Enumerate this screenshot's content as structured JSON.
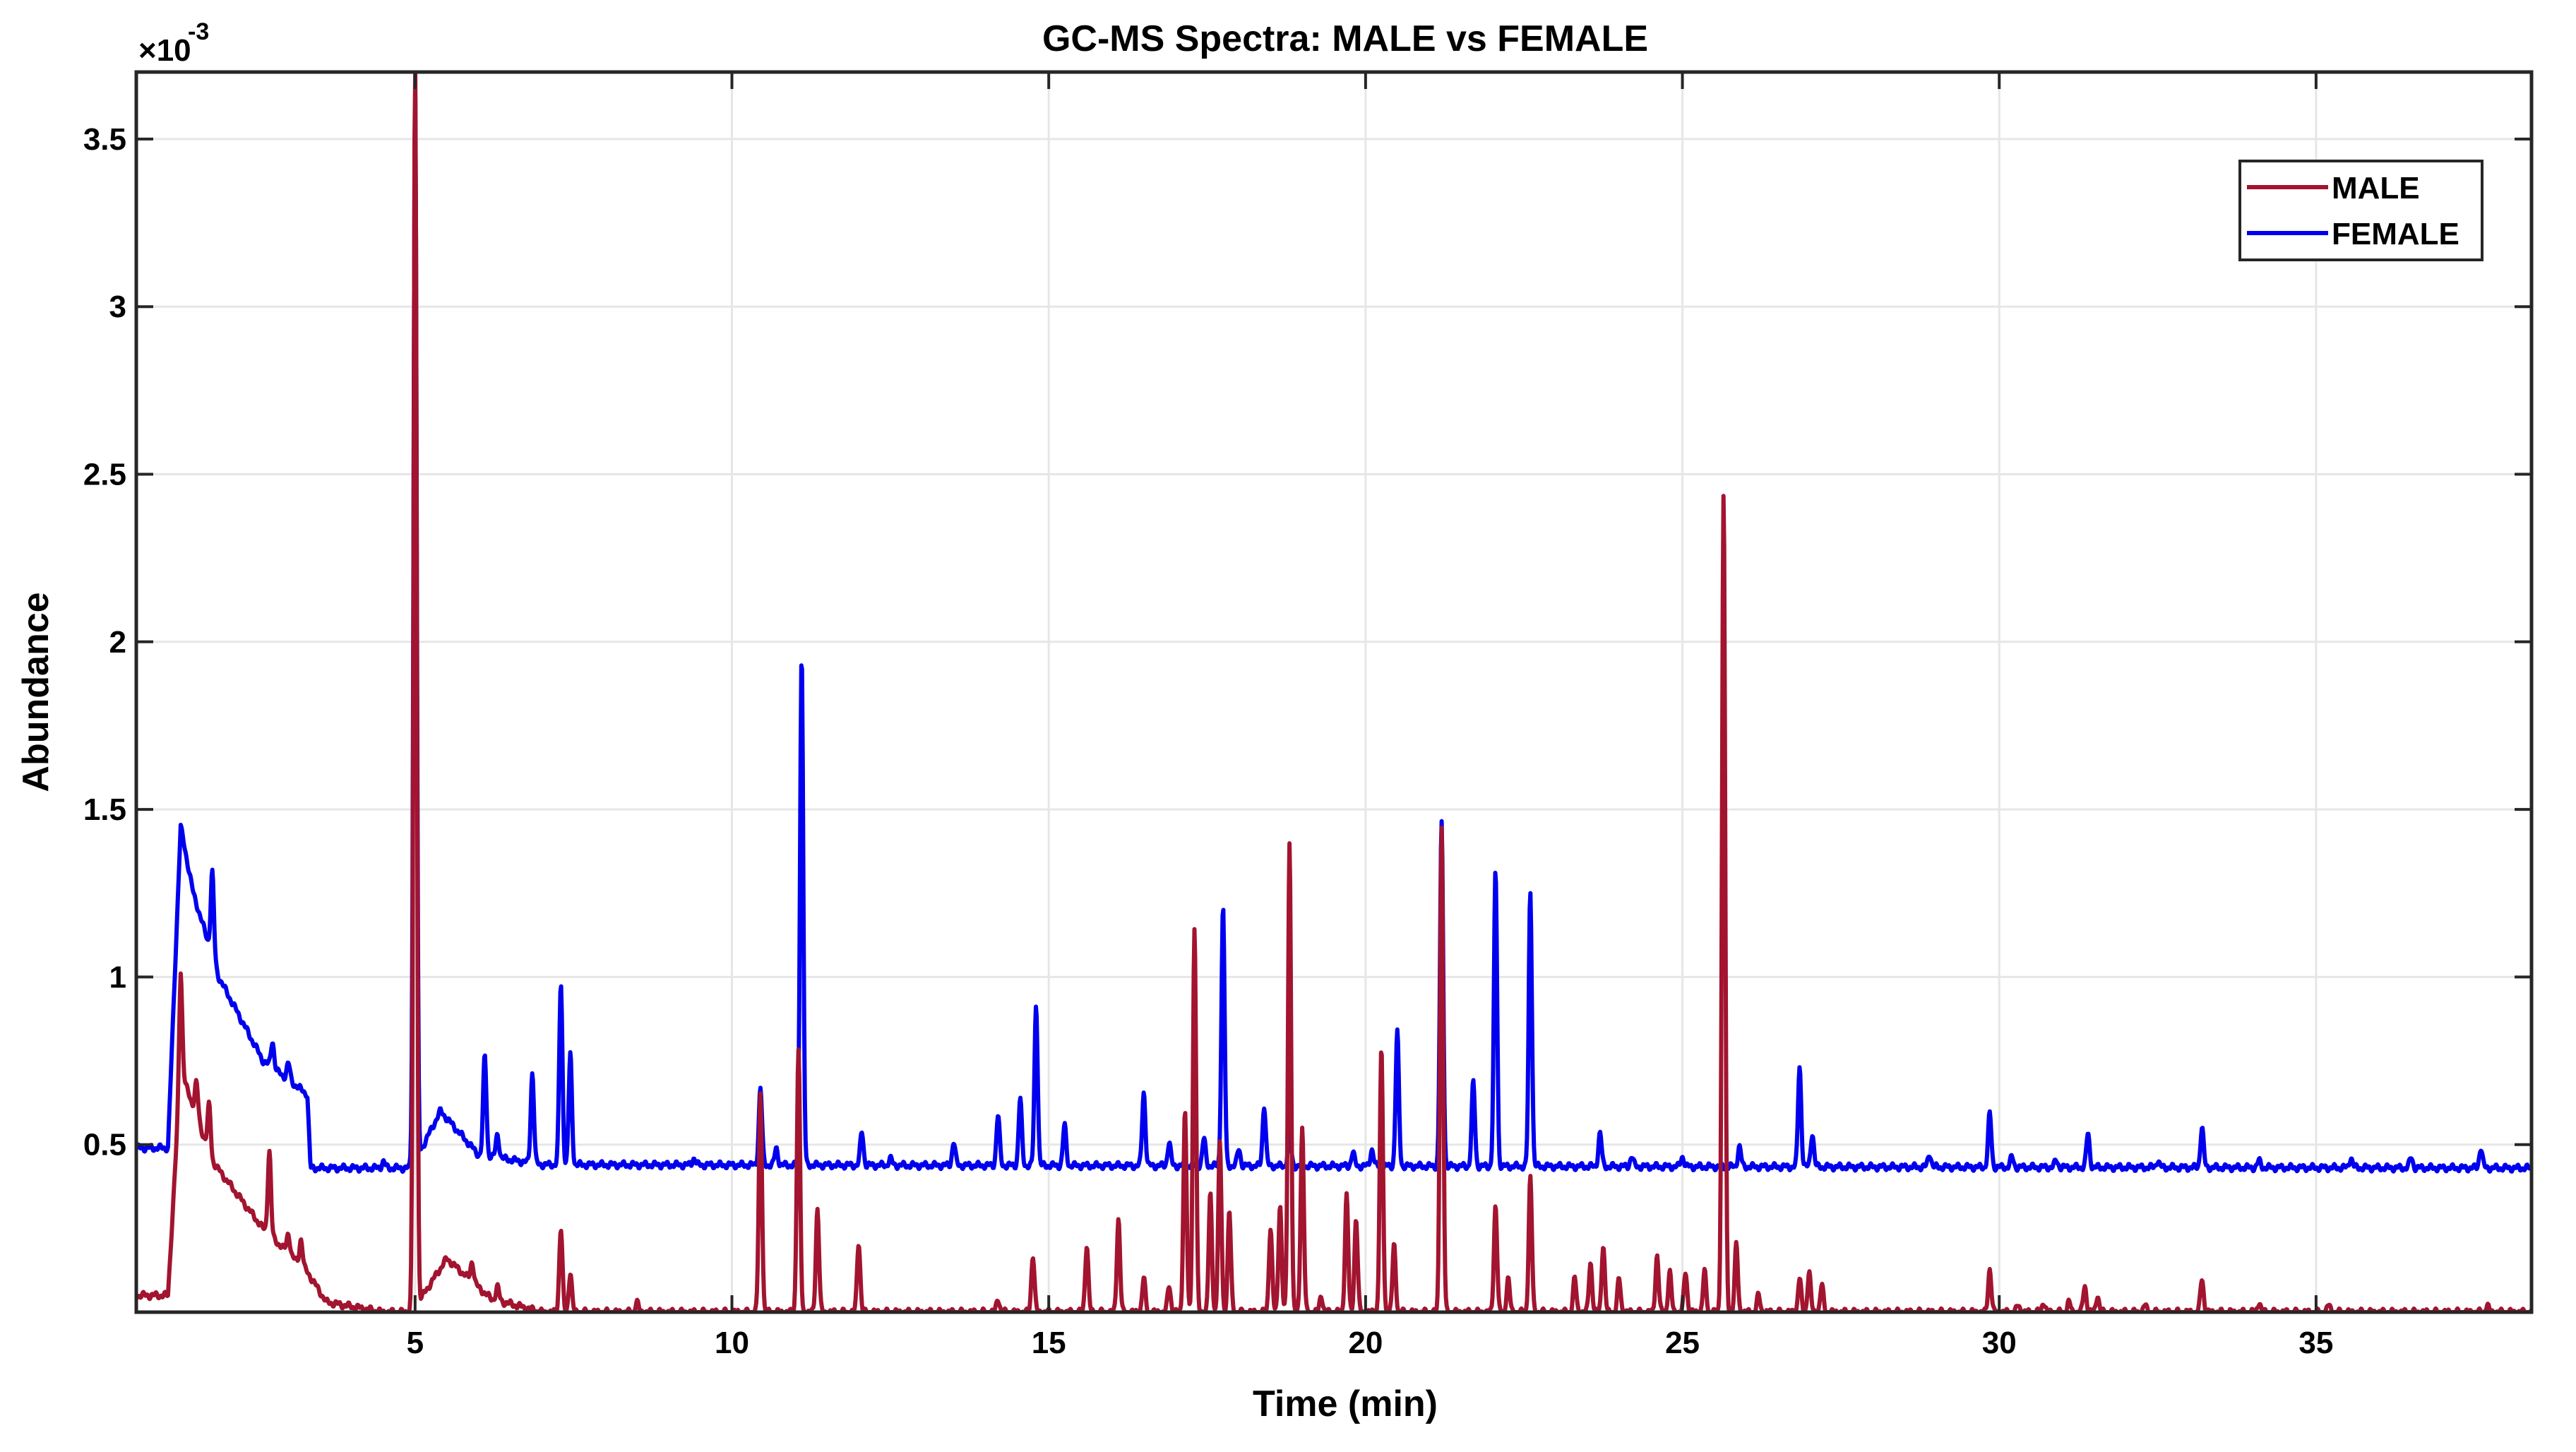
{
  "chart_data": {
    "type": "line",
    "title": "GC-MS Spectra: MALE vs FEMALE",
    "xlabel": "Time (min)",
    "ylabel": "Abundance",
    "y_exponent_label": "×10",
    "y_exponent": "-3",
    "xlim": [
      0.6,
      38.4
    ],
    "ylim": [
      0,
      3.7
    ],
    "x_ticks": [
      5,
      10,
      15,
      20,
      25,
      30,
      35
    ],
    "x_tick_labels": [
      "5",
      "10",
      "15",
      "20",
      "25",
      "30",
      "35"
    ],
    "y_ticks": [
      0.5,
      1,
      1.5,
      2,
      2.5,
      3,
      3.5
    ],
    "y_tick_labels": [
      "0.5",
      "1",
      "1.5",
      "2",
      "2.5",
      "3",
      "3.5"
    ],
    "grid": true,
    "legend_position": "top-right",
    "series": [
      {
        "name": "MALE",
        "color": "#a2142f",
        "baseline": [
          [
            0.6,
            0.05
          ],
          [
            1.1,
            0.05
          ],
          [
            1.3,
            0.72
          ],
          [
            1.8,
            0.45
          ],
          [
            2.6,
            0.25
          ],
          [
            3.3,
            0.12
          ],
          [
            3.6,
            0.03
          ],
          [
            4.5,
            0.0
          ],
          [
            4.95,
            0.0
          ],
          [
            5.5,
            0.16
          ],
          [
            6.2,
            0.04
          ],
          [
            7.0,
            0.0
          ],
          [
            38.4,
            0.0
          ]
        ],
        "peaks": [
          [
            1.3,
            0.3
          ],
          [
            1.55,
            0.1
          ],
          [
            1.75,
            0.14
          ],
          [
            2.7,
            0.25
          ],
          [
            3.0,
            0.06
          ],
          [
            3.2,
            0.08
          ],
          [
            5.0,
            3.7
          ],
          [
            5.9,
            0.06
          ],
          [
            6.3,
            0.04
          ],
          [
            7.3,
            0.25
          ],
          [
            7.45,
            0.12
          ],
          [
            8.5,
            0.03
          ],
          [
            10.45,
            0.65
          ],
          [
            11.05,
            0.78
          ],
          [
            11.35,
            0.31
          ],
          [
            12.0,
            0.21
          ],
          [
            14.2,
            0.04
          ],
          [
            14.75,
            0.17
          ],
          [
            15.6,
            0.2
          ],
          [
            16.1,
            0.28
          ],
          [
            16.5,
            0.1
          ],
          [
            16.9,
            0.08
          ],
          [
            17.15,
            0.6
          ],
          [
            17.3,
            1.15
          ],
          [
            17.55,
            0.35
          ],
          [
            17.7,
            0.5
          ],
          [
            17.85,
            0.3
          ],
          [
            18.5,
            0.25
          ],
          [
            18.65,
            0.32
          ],
          [
            18.8,
            1.4
          ],
          [
            19.0,
            0.55
          ],
          [
            19.3,
            0.05
          ],
          [
            19.7,
            0.35
          ],
          [
            19.85,
            0.28
          ],
          [
            20.25,
            0.78
          ],
          [
            20.45,
            0.2
          ],
          [
            21.2,
            1.45
          ],
          [
            22.05,
            0.32
          ],
          [
            22.25,
            0.1
          ],
          [
            22.6,
            0.4
          ],
          [
            23.3,
            0.1
          ],
          [
            23.55,
            0.15
          ],
          [
            23.75,
            0.2
          ],
          [
            24.0,
            0.1
          ],
          [
            24.6,
            0.17
          ],
          [
            24.8,
            0.12
          ],
          [
            25.05,
            0.12
          ],
          [
            25.35,
            0.12
          ],
          [
            25.65,
            2.44
          ],
          [
            25.85,
            0.2
          ],
          [
            26.2,
            0.05
          ],
          [
            26.85,
            0.1
          ],
          [
            27.0,
            0.12
          ],
          [
            27.2,
            0.08
          ],
          [
            29.85,
            0.13
          ],
          [
            30.3,
            0.02
          ],
          [
            30.7,
            0.03
          ],
          [
            31.1,
            0.03
          ],
          [
            31.35,
            0.08
          ],
          [
            31.55,
            0.05
          ],
          [
            32.3,
            0.02
          ],
          [
            33.2,
            0.1
          ],
          [
            34.1,
            0.03
          ],
          [
            35.2,
            0.02
          ],
          [
            37.7,
            0.02
          ]
        ]
      },
      {
        "name": "FEMALE",
        "color": "#0000ee",
        "baseline": [
          [
            0.6,
            0.49
          ],
          [
            1.1,
            0.49
          ],
          [
            1.3,
            1.45
          ],
          [
            1.5,
            1.25
          ],
          [
            1.9,
            1.0
          ],
          [
            2.6,
            0.75
          ],
          [
            3.3,
            0.65
          ],
          [
            3.35,
            0.43
          ],
          [
            4.95,
            0.43
          ],
          [
            5.4,
            0.6
          ],
          [
            6.0,
            0.47
          ],
          [
            7.0,
            0.44
          ],
          [
            38.4,
            0.43
          ]
        ],
        "peaks": [
          [
            1.8,
            0.25
          ],
          [
            2.75,
            0.08
          ],
          [
            3.0,
            0.05
          ],
          [
            4.5,
            0.02
          ],
          [
            5.0,
            3.2
          ],
          [
            6.1,
            0.3
          ],
          [
            6.3,
            0.07
          ],
          [
            6.85,
            0.27
          ],
          [
            7.3,
            0.54
          ],
          [
            7.45,
            0.33
          ],
          [
            9.4,
            0.02
          ],
          [
            10.45,
            0.23
          ],
          [
            10.7,
            0.05
          ],
          [
            11.1,
            1.53
          ],
          [
            12.05,
            0.1
          ],
          [
            12.5,
            0.02
          ],
          [
            13.5,
            0.07
          ],
          [
            14.2,
            0.15
          ],
          [
            14.55,
            0.2
          ],
          [
            14.8,
            0.48
          ],
          [
            15.25,
            0.12
          ],
          [
            16.5,
            0.22
          ],
          [
            16.9,
            0.07
          ],
          [
            17.45,
            0.08
          ],
          [
            17.75,
            0.77
          ],
          [
            18.0,
            0.05
          ],
          [
            18.4,
            0.18
          ],
          [
            18.8,
            0.1
          ],
          [
            19.8,
            0.04
          ],
          [
            20.1,
            0.05
          ],
          [
            20.5,
            0.4
          ],
          [
            21.2,
            1.02
          ],
          [
            21.7,
            0.25
          ],
          [
            22.05,
            0.88
          ],
          [
            22.6,
            0.82
          ],
          [
            23.7,
            0.1
          ],
          [
            24.2,
            0.03
          ],
          [
            25.0,
            0.03
          ],
          [
            25.9,
            0.06
          ],
          [
            26.85,
            0.3
          ],
          [
            27.05,
            0.1
          ],
          [
            28.9,
            0.04
          ],
          [
            29.85,
            0.16
          ],
          [
            30.2,
            0.03
          ],
          [
            30.9,
            0.02
          ],
          [
            31.4,
            0.1
          ],
          [
            32.5,
            0.02
          ],
          [
            33.2,
            0.12
          ],
          [
            34.1,
            0.02
          ],
          [
            35.55,
            0.03
          ],
          [
            36.5,
            0.03
          ],
          [
            37.6,
            0.06
          ]
        ]
      }
    ]
  }
}
